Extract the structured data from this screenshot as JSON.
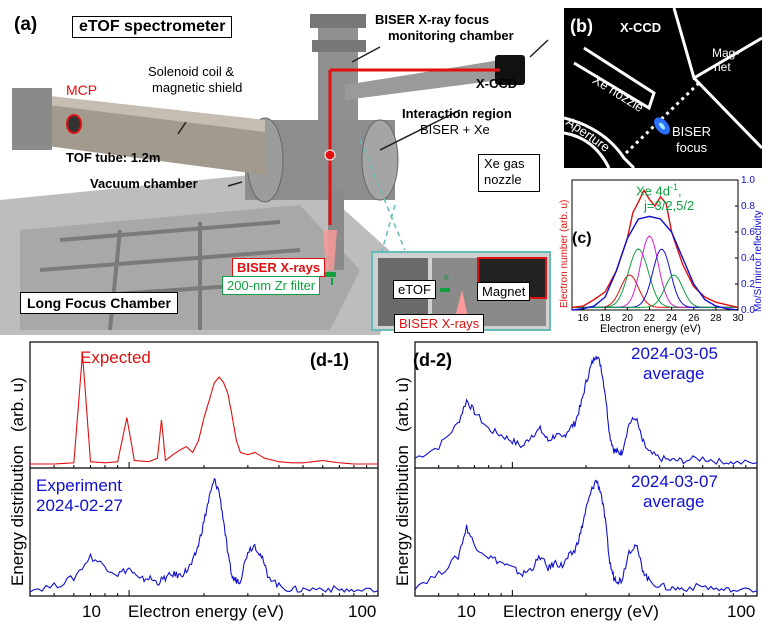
{
  "panel_a": {
    "label": "(a)",
    "title": "eTOF spectrometer",
    "mcp": "MCP",
    "solenoid": [
      "Solenoid coil &",
      "magnetic shield"
    ],
    "biser_chamber": [
      "BISER X-ray focus",
      "monitoring chamber"
    ],
    "xccd": "X-CCD",
    "interaction": [
      "Interaction region",
      "BISER + Xe"
    ],
    "tof_tube": "TOF tube: 1.2m",
    "vacuum_chamber": "Vacuum chamber",
    "biser_xrays": "BISER X-rays",
    "zr_filter": "200-nm Zr filter",
    "long_focus": "Long Focus Chamber",
    "xe_nozzle": [
      "Xe gas",
      "nozzle"
    ],
    "etof": "eTOF",
    "magnet": "Magnet",
    "biser_xrays_inset": "BISER X-rays",
    "e_label": "e"
  },
  "panel_b": {
    "label": "(b)",
    "xccd": "X-CCD",
    "magnet": [
      "Mag-",
      "net"
    ],
    "xe_nozzle": "Xe nozzle",
    "aperture": "Aperture",
    "focus": [
      "BISER",
      "focus"
    ]
  },
  "panel_c": {
    "label": "(c)",
    "annotation": [
      "Xe 4d",
      "-1",
      ",",
      "j=3/2,5/2"
    ],
    "xlabel": "Electron energy (eV)",
    "ylabel_left": "Electron number (arb. u)",
    "ylabel_right": "Mo/Si mirror reflectivity",
    "xticks": [
      "16",
      "18",
      "20",
      "22",
      "24",
      "26",
      "28",
      "30"
    ],
    "yticks_right": [
      "0.0",
      "0.2",
      "0.4",
      "0.6",
      "0.8",
      "1.0"
    ]
  },
  "panel_d1": {
    "label": "(d-1)",
    "expected": "Expected",
    "experiment": [
      "Experiment",
      "2024-02-27"
    ],
    "ylabel_top": "(arb. u)",
    "ylabel_bottom": "Energy distribution",
    "xlabel": "Electron energy (eV)",
    "xticks": [
      "10",
      "100"
    ]
  },
  "panel_d2": {
    "label": "(d-2)",
    "top": [
      "2024-03-05",
      "average"
    ],
    "bottom": [
      "2024-03-07",
      "average"
    ],
    "ylabel_top": "(arb. u)",
    "ylabel_bottom": "Energy distribution",
    "xlabel": "Electron energy (eV)",
    "xticks": [
      "10",
      "100"
    ]
  },
  "colors": {
    "red": "#e01010",
    "blue": "#1010d0",
    "green": "#10a040",
    "magenta": "#d020d0"
  },
  "chart_data": [
    {
      "type": "line",
      "panel": "c",
      "xlabel": "Electron energy (eV)",
      "ylabel": "Electron number (arb. u)",
      "y2label": "Mo/Si mirror reflectivity",
      "xlim": [
        15,
        30
      ],
      "y2lim": [
        0,
        1.0
      ],
      "series": [
        {
          "color": "#e01010",
          "x": [
            15,
            16,
            17,
            18,
            19,
            20,
            20.5,
            21,
            21.5,
            22,
            22.5,
            23,
            23.5,
            24,
            25,
            26,
            27,
            28,
            29,
            30
          ],
          "values": [
            0.02,
            0.03,
            0.08,
            0.14,
            0.3,
            0.55,
            0.75,
            0.83,
            0.92,
            0.85,
            0.8,
            0.87,
            0.82,
            0.6,
            0.35,
            0.18,
            0.1,
            0.06,
            0.04,
            0.02
          ]
        },
        {
          "color": "#1010d0",
          "x": [
            15,
            16,
            17,
            18,
            19,
            20,
            21,
            22,
            23,
            24,
            25,
            26,
            27,
            28,
            29,
            30
          ],
          "values": [
            0.0,
            0.01,
            0.03,
            0.1,
            0.3,
            0.55,
            0.7,
            0.72,
            0.7,
            0.6,
            0.4,
            0.2,
            0.08,
            0.03,
            0.01,
            0.0
          ]
        }
      ]
    },
    {
      "type": "line",
      "panel": "d-1",
      "xscale": "log",
      "xlim": [
        4,
        100
      ],
      "series": [
        {
          "name": "Expected",
          "color": "#e01010",
          "x": [
            4,
            5,
            6,
            6.5,
            7,
            8,
            9,
            9.8,
            10.5,
            12,
            13,
            13.5,
            14,
            15,
            16,
            17,
            18,
            19,
            20,
            21,
            22,
            23,
            24,
            25,
            26,
            27,
            28,
            30,
            32,
            35,
            40,
            45,
            50,
            60,
            70,
            80,
            100
          ],
          "values": [
            0,
            0,
            0.01,
            0.95,
            0.02,
            0.01,
            0.02,
            0.4,
            0.03,
            0.02,
            0.05,
            0.38,
            0.03,
            0.08,
            0.12,
            0.15,
            0.1,
            0.2,
            0.4,
            0.55,
            0.7,
            0.75,
            0.7,
            0.6,
            0.4,
            0.2,
            0.1,
            0.08,
            0.1,
            0.05,
            0.02,
            0.01,
            0.01,
            0.03,
            0.01,
            0,
            0
          ]
        },
        {
          "name": "Experiment 2024-02-27",
          "color": "#1010d0",
          "x": [
            4,
            5,
            6,
            7,
            8,
            9,
            10,
            11,
            12,
            13,
            14,
            15,
            16,
            17,
            18,
            19,
            20,
            21,
            22,
            23,
            24,
            25,
            26,
            27,
            28,
            30,
            32,
            34,
            36,
            40,
            45,
            50,
            60,
            70,
            80,
            100
          ],
          "values": [
            0.02,
            0.05,
            0.12,
            0.3,
            0.22,
            0.15,
            0.2,
            0.1,
            0.12,
            0.08,
            0.12,
            0.15,
            0.14,
            0.18,
            0.25,
            0.4,
            0.6,
            0.8,
            0.95,
            0.85,
            0.6,
            0.3,
            0.12,
            0.1,
            0.1,
            0.35,
            0.4,
            0.3,
            0.15,
            0.05,
            0.02,
            0.02,
            0.03,
            0.02,
            0.01,
            0.01
          ]
        }
      ]
    },
    {
      "type": "line",
      "panel": "d-2",
      "xscale": "log",
      "xlim": [
        4,
        100
      ],
      "series": [
        {
          "name": "2024-03-05 average",
          "color": "#1010d0",
          "x": [
            4,
            5,
            6,
            6.5,
            7,
            8,
            9,
            10,
            11,
            12,
            13,
            14,
            15,
            16,
            17,
            18,
            19,
            20,
            21,
            22,
            23,
            24,
            25,
            26,
            27,
            28,
            30,
            32,
            34,
            36,
            40,
            45,
            50,
            60,
            70,
            80,
            100
          ],
          "values": [
            0.05,
            0.15,
            0.35,
            0.55,
            0.45,
            0.3,
            0.25,
            0.2,
            0.15,
            0.25,
            0.3,
            0.2,
            0.25,
            0.22,
            0.3,
            0.35,
            0.5,
            0.7,
            0.85,
            0.95,
            0.85,
            0.6,
            0.25,
            0.12,
            0.1,
            0.1,
            0.35,
            0.4,
            0.2,
            0.1,
            0.05,
            0.03,
            0.03,
            0.05,
            0.02,
            0.01,
            0.01
          ]
        },
        {
          "name": "2024-03-07 average",
          "color": "#1010d0",
          "x": [
            4,
            5,
            6,
            6.5,
            7,
            8,
            9,
            10,
            11,
            12,
            13,
            14,
            15,
            16,
            17,
            18,
            19,
            20,
            21,
            22,
            23,
            24,
            25,
            26,
            27,
            28,
            30,
            32,
            34,
            36,
            40,
            45,
            50,
            60,
            70,
            80,
            100
          ],
          "values": [
            0.05,
            0.15,
            0.3,
            0.55,
            0.4,
            0.3,
            0.25,
            0.2,
            0.15,
            0.2,
            0.3,
            0.2,
            0.25,
            0.22,
            0.3,
            0.35,
            0.5,
            0.7,
            0.85,
            0.95,
            0.85,
            0.6,
            0.25,
            0.12,
            0.1,
            0.1,
            0.35,
            0.4,
            0.2,
            0.1,
            0.05,
            0.03,
            0.03,
            0.05,
            0.02,
            0.01,
            0.01
          ]
        }
      ]
    }
  ]
}
